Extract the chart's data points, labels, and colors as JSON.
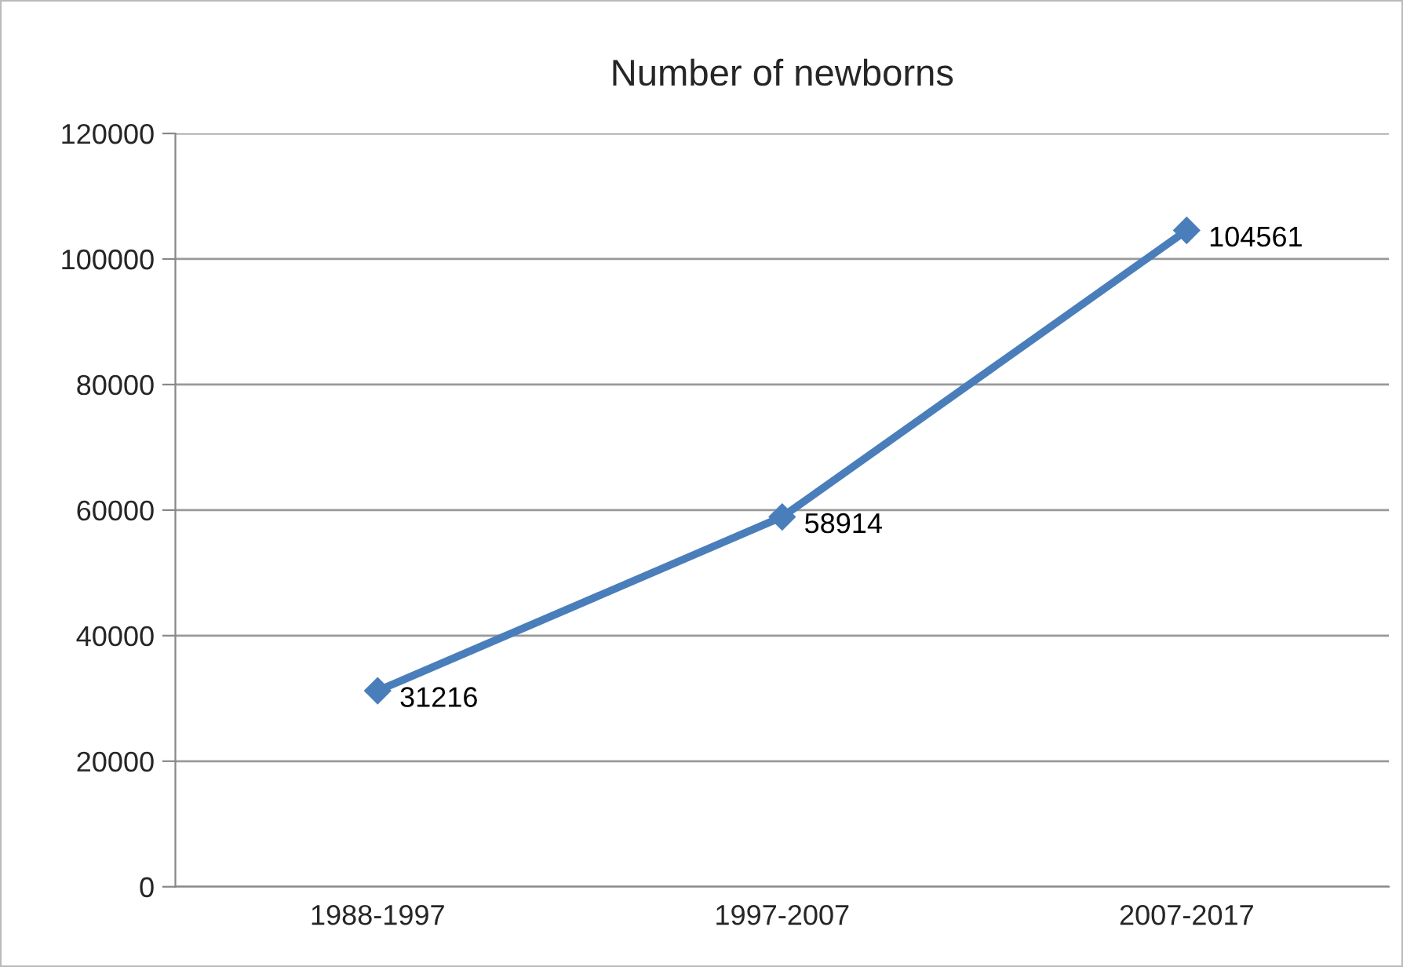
{
  "chart_data": {
    "type": "line",
    "title": "Number of newborns",
    "categories": [
      "1988-1997",
      "1997-2007",
      "2007-2017"
    ],
    "series": [
      {
        "color": "#4a7ebb",
        "values": [
          31216,
          58914,
          104561
        ]
      }
    ],
    "ylim": [
      0,
      120000
    ],
    "yticks": [
      0,
      20000,
      40000,
      60000,
      80000,
      100000,
      120000
    ],
    "grid": "y",
    "marker": "diamond",
    "line_style": "solid",
    "data_labels": true
  }
}
